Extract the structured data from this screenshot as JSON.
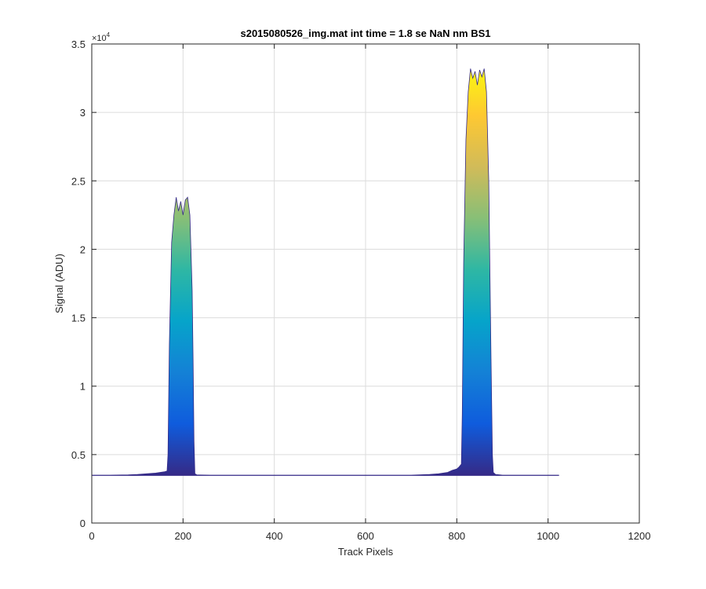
{
  "chart_data": {
    "type": "area",
    "title": "s2015080526_img.mat int time = 1.8 se  NaN nm BS1",
    "xlabel": "Track Pixels",
    "ylabel": "Signal (ADU)",
    "xlim": [
      0,
      1200
    ],
    "ylim": [
      0,
      35000
    ],
    "x_ticks": [
      0,
      200,
      400,
      600,
      800,
      1000,
      1200
    ],
    "x_tick_labels": [
      "0",
      "200",
      "400",
      "600",
      "800",
      "1000",
      "1200"
    ],
    "y_ticks": [
      0,
      5000,
      10000,
      15000,
      20000,
      25000,
      30000,
      35000
    ],
    "y_tick_labels": [
      "0",
      "0.5",
      "1",
      "1.5",
      "2",
      "2.5",
      "3",
      "3.5"
    ],
    "y_exponent_base": "×10",
    "y_exponent_power": "4",
    "grid": true,
    "colormap": "parula",
    "colormap_stops": [
      "#352a87",
      "#0f5cdd",
      "#1481d6",
      "#06a4ca",
      "#2eb7a4",
      "#87bf77",
      "#d1bb59",
      "#fec832",
      "#f9fb0e"
    ],
    "series": [
      {
        "x": [
          1,
          40,
          80,
          100,
          120,
          140,
          150,
          160,
          165,
          167,
          170,
          175,
          180,
          185,
          190,
          195,
          200,
          205,
          210,
          215,
          220,
          222,
          224,
          226,
          230,
          260,
          300,
          400,
          500,
          600,
          700,
          740,
          760,
          780,
          790,
          800,
          805,
          810,
          812,
          815,
          820,
          825,
          830,
          835,
          840,
          845,
          850,
          855,
          860,
          865,
          870,
          875,
          878,
          880,
          885,
          900,
          950,
          1000,
          1024
        ],
        "y": [
          3500,
          3500,
          3520,
          3550,
          3600,
          3650,
          3700,
          3750,
          3800,
          5000,
          13000,
          20500,
          22500,
          23800,
          22800,
          23500,
          22500,
          23600,
          23800,
          22500,
          17000,
          12000,
          6000,
          3600,
          3520,
          3500,
          3500,
          3500,
          3500,
          3500,
          3500,
          3550,
          3600,
          3700,
          3850,
          3950,
          4100,
          4300,
          8000,
          19000,
          28000,
          31500,
          33200,
          32500,
          33000,
          32000,
          33100,
          32600,
          33200,
          31500,
          25000,
          12000,
          5000,
          3700,
          3550,
          3500,
          3500,
          3500,
          3500
        ]
      }
    ]
  }
}
